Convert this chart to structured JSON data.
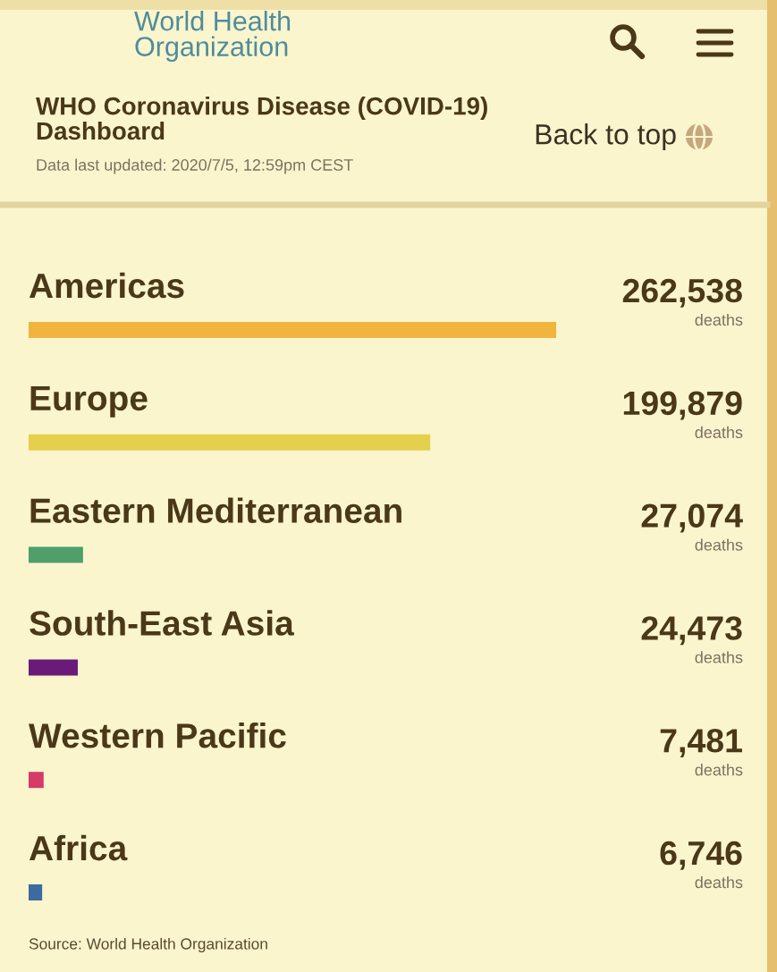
{
  "chart_data": {
    "type": "bar",
    "orientation": "horizontal",
    "title": "WHO Coronavirus Disease (COVID-19) Dashboard",
    "subtitle": "Data last updated: 2020/7/5, 12:59pm CEST",
    "categories": [
      "Americas",
      "Europe",
      "Eastern Mediterranean",
      "South-East Asia",
      "Western Pacific",
      "Africa"
    ],
    "values": [
      262538,
      199879,
      27074,
      24473,
      7481,
      6746
    ],
    "colors": [
      "#f1b43f",
      "#e5d04e",
      "#4e9f69",
      "#6a1b7a",
      "#d53a68",
      "#3d6aa0"
    ],
    "value_labels": [
      "262,538\ndeaths",
      "199,879\ndeaths",
      "27,074\ndeaths",
      "24,473\ndeaths",
      "7,481\ndeaths",
      "6,746\ndeaths"
    ],
    "tick_labels": "y",
    "annotations": [
      "World Health Organization",
      "Back to top",
      "Source: World Health Organization"
    ]
  }
}
